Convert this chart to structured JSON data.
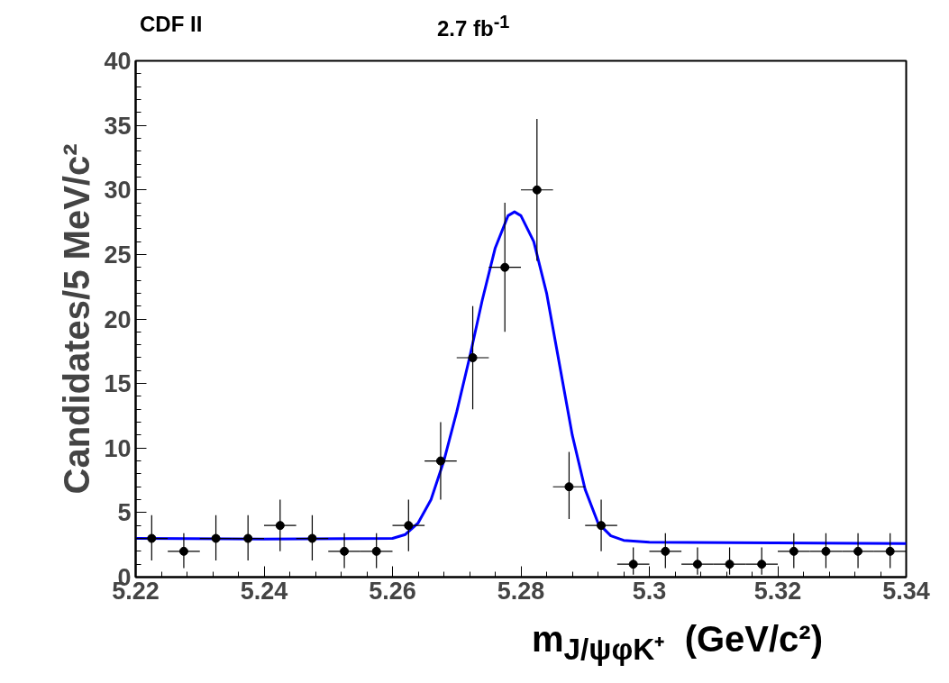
{
  "chart_data": {
    "type": "scatter",
    "annotations": [
      "CDF II",
      "2.7 fb$^{-1}$"
    ],
    "xlabel": "m$_{J/ψφK⁺}$  (GeV/c²)",
    "ylabel": "Candidates/5 MeV/c²",
    "xlim": [
      5.22,
      5.34
    ],
    "xticks": [
      5.22,
      5.24,
      5.26,
      5.28,
      5.3,
      5.32,
      5.34
    ],
    "ylim": [
      0,
      40
    ],
    "yticks": [
      0,
      5,
      10,
      15,
      20,
      25,
      30,
      35,
      40
    ],
    "grid": false,
    "series": [
      {
        "color": "#000000",
        "marker": "circle",
        "x": [
          5.2225,
          5.2275,
          5.2325,
          5.2375,
          5.2425,
          5.2475,
          5.2525,
          5.2575,
          5.2625,
          5.2675,
          5.2725,
          5.2775,
          5.2825,
          5.2875,
          5.2925,
          5.2975,
          5.3025,
          5.3075,
          5.3125,
          5.3175,
          5.3225,
          5.3275,
          5.3325,
          5.3375
        ],
        "values": [
          3,
          2,
          3,
          3,
          4,
          3,
          2,
          2,
          4,
          9,
          17,
          24,
          30,
          7,
          4,
          1,
          2,
          1,
          1,
          1,
          2,
          2,
          2,
          2
        ],
        "errors": [
          [
            1.3,
            4.8
          ],
          [
            0.7,
            3.4
          ],
          [
            1.3,
            4.8
          ],
          [
            1.3,
            4.8
          ],
          [
            2.0,
            6.0
          ],
          [
            1.3,
            4.8
          ],
          [
            0.7,
            3.4
          ],
          [
            0.7,
            3.4
          ],
          [
            2.0,
            6.0
          ],
          [
            6.0,
            12.0
          ],
          [
            13.0,
            21.0
          ],
          [
            19.0,
            29.0
          ],
          [
            24.5,
            35.5
          ],
          [
            4.5,
            9.7
          ],
          [
            2.0,
            6.0
          ],
          [
            0.2,
            2.3
          ],
          [
            0.7,
            3.4
          ],
          [
            0.2,
            2.3
          ],
          [
            0.2,
            2.3
          ],
          [
            0.2,
            2.3
          ],
          [
            0.7,
            3.4
          ],
          [
            0.7,
            3.4
          ],
          [
            0.7,
            3.4
          ],
          [
            0.7,
            3.4
          ]
        ],
        "xerrors": [
          0.0025,
          0.0025,
          0.0025,
          0.0025,
          0.0025,
          0.0025,
          0.0025,
          0.0025,
          0.0025,
          0.0025,
          0.0025,
          0.0025,
          0.0025,
          0.0025,
          0.0025,
          0.0025,
          0.0025,
          0.0025,
          0.0025,
          0.0025,
          0.0025,
          0.0025,
          0.0025,
          0.0025
        ]
      },
      {
        "type": "line",
        "color": "#0000ff",
        "line_style": "solid",
        "marker": "none",
        "x": [
          5.22,
          5.24,
          5.26,
          5.262,
          5.264,
          5.266,
          5.268,
          5.27,
          5.272,
          5.274,
          5.276,
          5.278,
          5.279,
          5.28,
          5.282,
          5.284,
          5.286,
          5.288,
          5.29,
          5.292,
          5.294,
          5.296,
          5.3,
          5.34
        ],
        "values": [
          3.0,
          2.95,
          3.0,
          3.3,
          4.2,
          6.0,
          9.0,
          12.8,
          17.0,
          21.5,
          25.5,
          28.0,
          28.3,
          28.0,
          26.0,
          22.0,
          16.5,
          11.0,
          6.8,
          4.2,
          3.2,
          2.85,
          2.7,
          2.6
        ]
      }
    ]
  }
}
